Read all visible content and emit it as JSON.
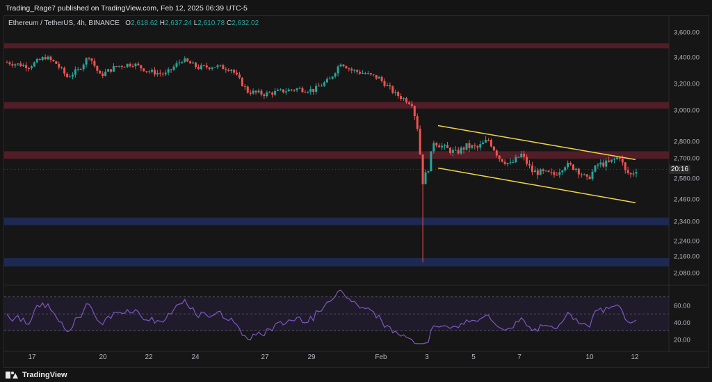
{
  "header": {
    "published": "Trading_Rage7 published on TradingView.com, Feb 12, 2025 06:39 UTC-5"
  },
  "symbol": {
    "name": "Ethereum / TetherUS, 4h, BINANCE",
    "o_label": "O",
    "o": "2,618.62",
    "h_label": "H",
    "h": "2,637.24",
    "l_label": "L",
    "l": "2,610.78",
    "c_label": "C",
    "c": "2,632.02"
  },
  "countdown": "20:16",
  "footer": {
    "brand": "TradingView"
  },
  "colors": {
    "up": "#26a69a",
    "down": "#ef5350",
    "resistance_zone": "#5c1f2a",
    "support_zone": "#1f2d5c",
    "channel": "#f0d64a",
    "rsi_line": "#7e57c2",
    "rsi_band": "#2a2040"
  },
  "chart_data": [
    {
      "type": "candlestick",
      "title": "",
      "y_axis_ticks": [
        "3,600.00",
        "3,400.00",
        "3,200.00",
        "3,000.00",
        "2,800.00",
        "2,700.00",
        "2,580.00",
        "2,460.00",
        "2,340.00",
        "2,240.00",
        "2,160.00",
        "2,080.00"
      ],
      "x_axis_ticks": [
        "17",
        "20",
        "22",
        "24",
        "27",
        "29",
        "Feb",
        "3",
        "5",
        "7",
        "10",
        "12"
      ],
      "ylim": [
        2000,
        3650
      ],
      "zones": [
        {
          "kind": "resistance",
          "from": 3470,
          "to": 3510
        },
        {
          "kind": "resistance",
          "from": 3010,
          "to": 3060
        },
        {
          "kind": "resistance",
          "from": 2695,
          "to": 2740
        },
        {
          "kind": "support",
          "from": 2320,
          "to": 2360
        },
        {
          "kind": "support",
          "from": 2110,
          "to": 2150
        }
      ],
      "channel": {
        "upper": [
          {
            "x": "Feb 3",
            "y": 2900
          },
          {
            "x": "Feb 12",
            "y": 2690
          }
        ],
        "lower": [
          {
            "x": "Feb 3",
            "y": 2640
          },
          {
            "x": "Feb 12",
            "y": 2440
          }
        ]
      },
      "last_price": 2632.02,
      "scale": "log"
    },
    {
      "type": "line",
      "title": "",
      "y_axis_ticks": [
        "60.00",
        "40.00",
        "20.00"
      ],
      "ylim": [
        10,
        82
      ],
      "band": [
        30,
        70
      ],
      "mid": 50
    }
  ]
}
